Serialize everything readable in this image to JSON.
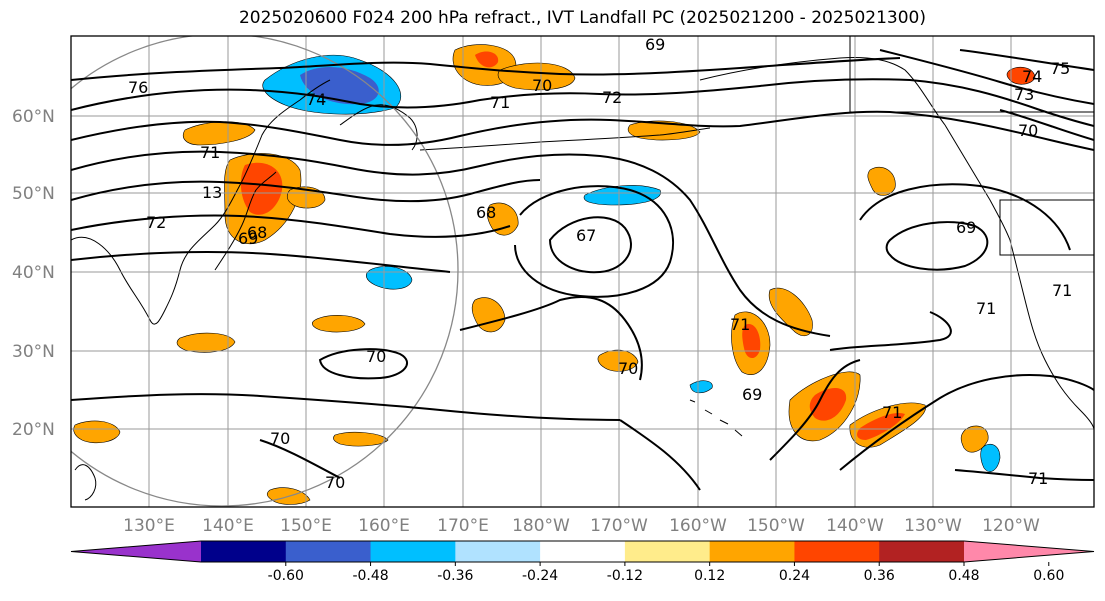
{
  "title": "2025020600 F024 200 hPa refract., IVT Landfall PC (2025021200 - 2025021300)",
  "latitude_labels": [
    "60°N",
    "50°N",
    "40°N",
    "30°N",
    "20°N"
  ],
  "longitude_labels": [
    "130°E",
    "140°E",
    "150°E",
    "160°E",
    "170°E",
    "180°W",
    "170°W",
    "160°W",
    "150°W",
    "140°W",
    "130°W",
    "120°W"
  ],
  "contour_labels": [
    "76",
    "74",
    "71",
    "70",
    "72",
    "69",
    "75",
    "74",
    "73",
    "70",
    "71",
    "13",
    "72",
    "68",
    "69",
    "67",
    "68",
    "69",
    "71",
    "70",
    "71",
    "69",
    "71",
    "70",
    "70",
    "71",
    "70",
    "71"
  ],
  "colorbar": {
    "tick_labels": [
      "-0.60",
      "-0.48",
      "-0.36",
      "-0.24",
      "-0.12",
      "0.12",
      "0.24",
      "0.36",
      "0.48",
      "0.60"
    ],
    "colors": [
      "#9932cc",
      "#00008b",
      "#3a5fcd",
      "#00bfff",
      "#b0e2ff",
      "#ffffff",
      "#ffec8b",
      "#ffa500",
      "#ff4500",
      "#b22222",
      "#ff88aa"
    ]
  }
}
